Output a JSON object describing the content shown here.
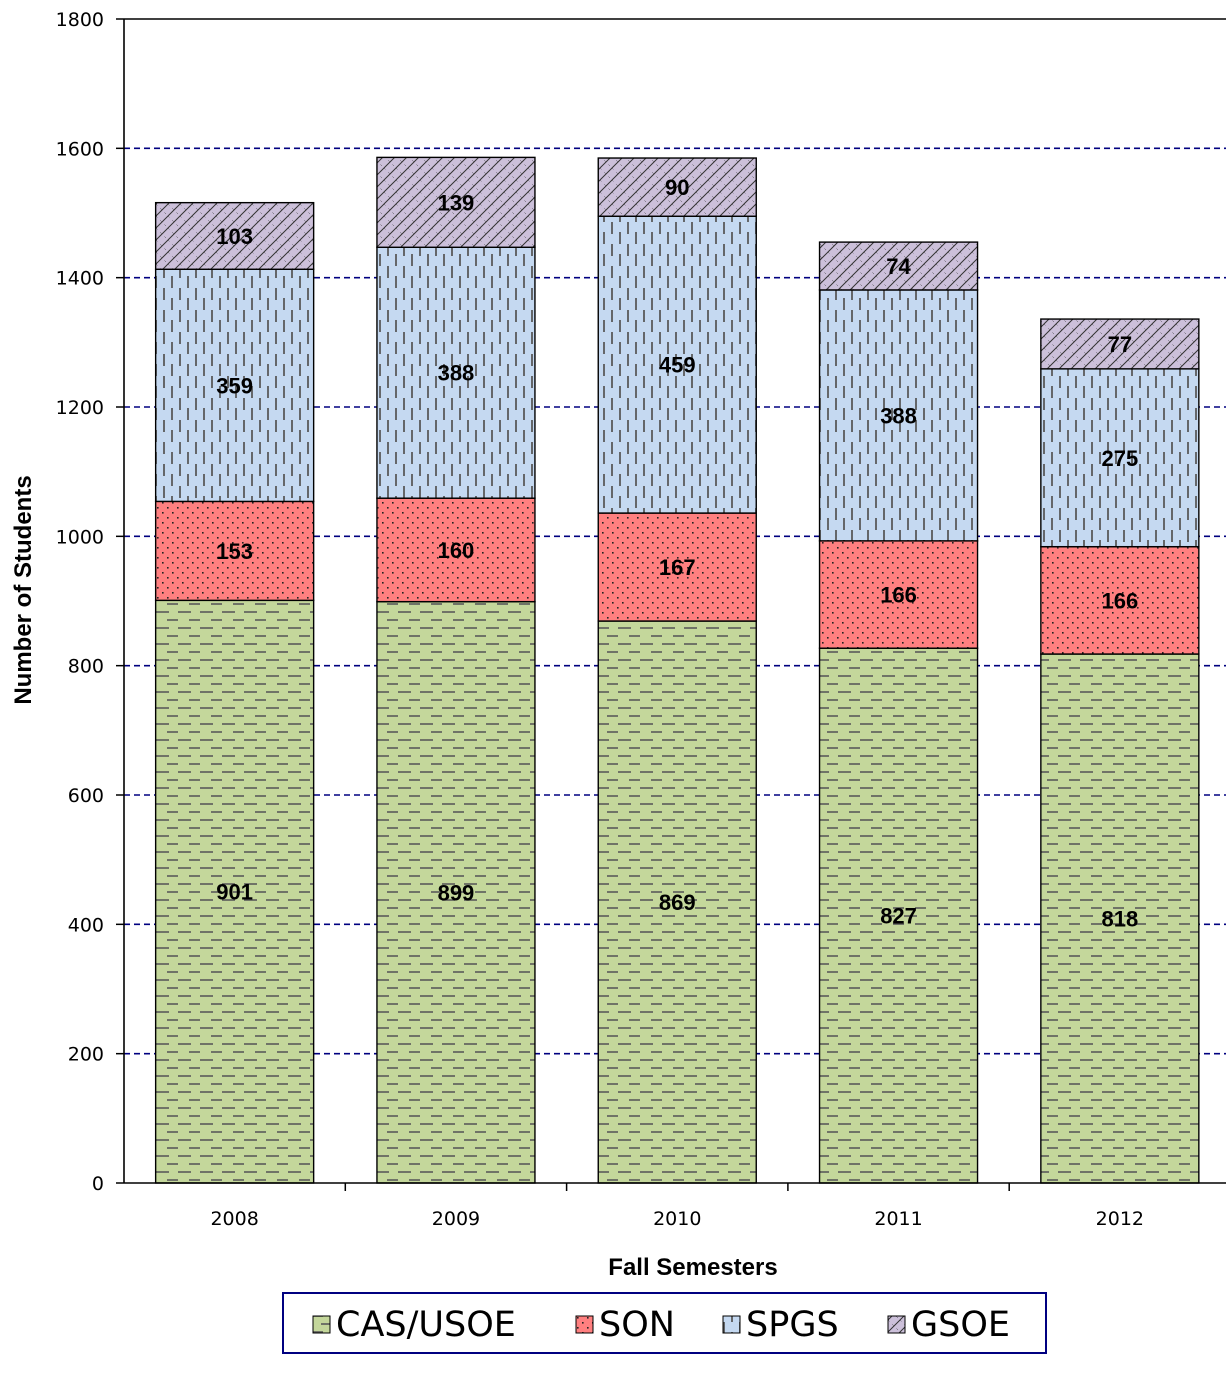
{
  "chart_data": {
    "type": "bar",
    "stacked": true,
    "categories": [
      "2008",
      "2009",
      "2010",
      "2011",
      "2012"
    ],
    "series": [
      {
        "name": "CAS/USOE",
        "values": [
          901,
          899,
          869,
          827,
          818
        ],
        "color": "#c4d79b",
        "pattern": "dashes-horizontal"
      },
      {
        "name": "SON",
        "values": [
          153,
          160,
          167,
          166,
          166
        ],
        "color": "#ff8080",
        "pattern": "dots"
      },
      {
        "name": "SPGS",
        "values": [
          359,
          388,
          459,
          388,
          275
        ],
        "color": "#c5d9f1",
        "pattern": "dashes-vertical"
      },
      {
        "name": "GSOE",
        "values": [
          103,
          139,
          90,
          74,
          77
        ],
        "color": "#ccc0da",
        "pattern": "diagonal-cross"
      }
    ],
    "xlabel": "Fall Semesters",
    "ylabel": "Number of Students",
    "ylim": [
      0,
      1800
    ],
    "yticks": [
      "0",
      "200",
      "400",
      "600",
      "800",
      "1000",
      "1200",
      "1400",
      "1600",
      "1800"
    ],
    "grid": true,
    "grid_color": "#000080",
    "legend_position": "bottom"
  }
}
